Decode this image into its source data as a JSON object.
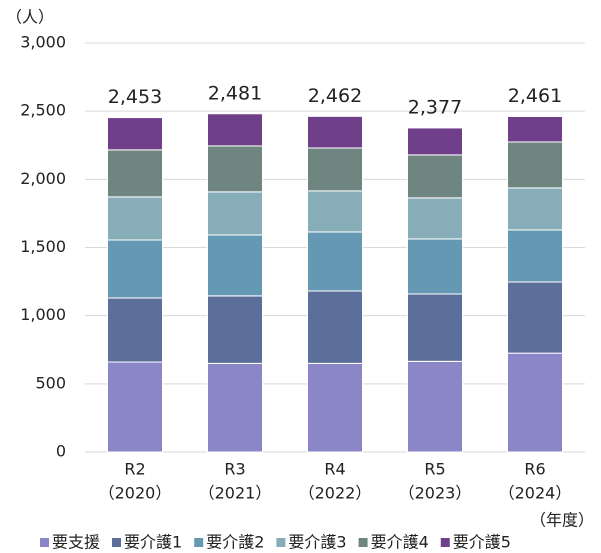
{
  "chart_data": {
    "type": "stacked_bar",
    "y_unit": "（人）",
    "x_unit": "（年度）",
    "categories": [
      [
        "R2",
        "（2020）"
      ],
      [
        "R3",
        "（2021）"
      ],
      [
        "R4",
        "（2022）"
      ],
      [
        "R5",
        "（2023）"
      ],
      [
        "R6",
        "（2024）"
      ]
    ],
    "series": [
      {
        "name": "要支援",
        "color": "#8a86c8",
        "values": [
          660,
          650,
          650,
          665,
          725
        ]
      },
      {
        "name": "要介護1",
        "color": "#5c6f9b",
        "values": [
          470,
          495,
          531,
          494,
          522
        ]
      },
      {
        "name": "要介護2",
        "color": "#6598b2",
        "values": [
          425,
          447,
          433,
          404,
          382
        ]
      },
      {
        "name": "要介護3",
        "color": "#86adb8",
        "values": [
          316,
          316,
          301,
          301,
          308
        ]
      },
      {
        "name": "要介護4",
        "color": "#6f8580",
        "values": [
          345,
          337,
          315,
          315,
          337
        ]
      },
      {
        "name": "要介護5",
        "color": "#6f3f8a",
        "values": [
          237,
          236,
          232,
          198,
          187
        ]
      }
    ],
    "totals": [
      2453,
      2481,
      2462,
      2377,
      2461
    ],
    "total_labels": [
      "2,453",
      "2,481",
      "2,462",
      "2,377",
      "2,461"
    ],
    "ylim": [
      0,
      3000
    ],
    "yticks": [
      0,
      500,
      {
        "value": 1000,
        "label": "1,000"
      },
      {
        "value": 1500,
        "label": "1,500"
      },
      {
        "value": 2000,
        "label": "2,000"
      },
      {
        "value": 2500,
        "label": "2,500"
      },
      {
        "value": 3000,
        "label": "3,000"
      }
    ],
    "grid": true,
    "legend": "bottom"
  }
}
